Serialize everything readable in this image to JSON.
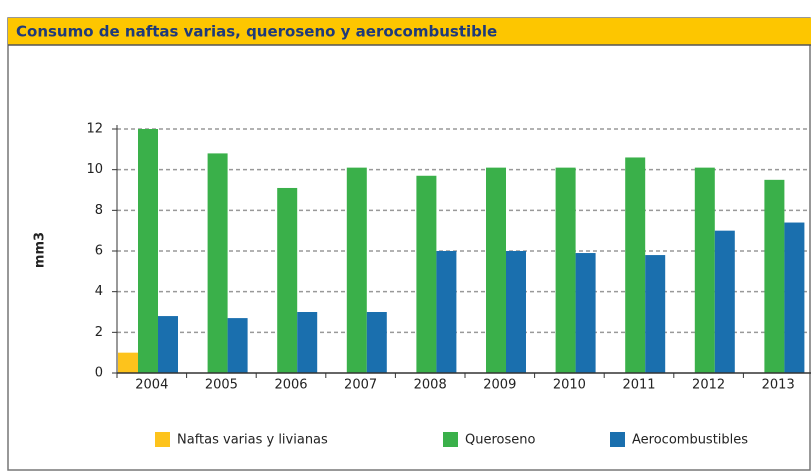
{
  "chart_data": {
    "type": "bar",
    "title": "Consumo de naftas varias, queroseno y aerocombustible",
    "y_label": "mm3",
    "categories": [
      "2004",
      "2005",
      "2006",
      "2007",
      "2008",
      "2009",
      "2010",
      "2011",
      "2012",
      "2013"
    ],
    "series": [
      {
        "name": "Naftas varias y livianas",
        "color": "#fdc31c",
        "values": [
          1.0,
          0,
          0,
          0,
          0,
          0,
          0,
          0,
          0,
          0
        ]
      },
      {
        "name": "Queroseno",
        "color": "#3ab04a",
        "values": [
          12.0,
          10.8,
          9.1,
          10.1,
          9.7,
          10.1,
          10.1,
          10.6,
          10.1,
          9.5
        ]
      },
      {
        "name": "Aerocombustibles",
        "color": "#1a6fae",
        "values": [
          2.8,
          2.7,
          3.0,
          3.0,
          6.0,
          6.0,
          5.9,
          5.8,
          7.0,
          7.4
        ]
      }
    ],
    "ylim": [
      0,
      12
    ],
    "yticks": [
      0,
      2,
      4,
      6,
      8,
      10,
      12
    ],
    "grid": true,
    "legend": "bottom"
  }
}
